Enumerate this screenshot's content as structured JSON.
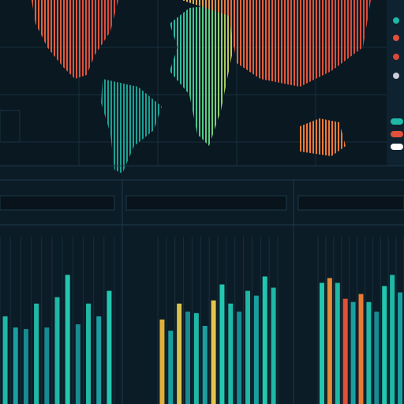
{
  "chart_data": [
    {
      "type": "bar",
      "ylim": [
        0,
        100
      ],
      "values": [
        55,
        48,
        47,
        63,
        48,
        67,
        81,
        50,
        63,
        55,
        71
      ],
      "colors": [
        "#1fb8a6",
        "#1a9fa0",
        "#178a92",
        "#1fb8a6",
        "#178a92",
        "#1fb8a6",
        "#22c7b0",
        "#178a92",
        "#1fb8a6",
        "#1a9fa0",
        "#22c7b0"
      ]
    },
    {
      "type": "bar",
      "ylim": [
        0,
        100
      ],
      "values": [
        53,
        46,
        63,
        58,
        57,
        49,
        65,
        75,
        63,
        58,
        71,
        68,
        80,
        73
      ],
      "colors": [
        "#e0b03a",
        "#1a9fa0",
        "#d9c24a",
        "#178a92",
        "#1fb8a6",
        "#1a9fa0",
        "#e3c54a",
        "#22c7b0",
        "#1fb8a6",
        "#178a92",
        "#1fb8a6",
        "#1a9fa0",
        "#22c7b0",
        "#1fb8a6"
      ]
    },
    {
      "type": "bar",
      "ylim": [
        0,
        100
      ],
      "values": [
        76,
        79,
        76,
        66,
        64,
        69,
        64,
        58,
        74,
        81,
        70
      ],
      "colors": [
        "#22c7b0",
        "#e38a35",
        "#1fb8a6",
        "#e0503a",
        "#1a9fa0",
        "#e87a35",
        "#1fb8a6",
        "#178a92",
        "#22c7b0",
        "#1fb8a6",
        "#1a9fa0"
      ]
    }
  ]
}
